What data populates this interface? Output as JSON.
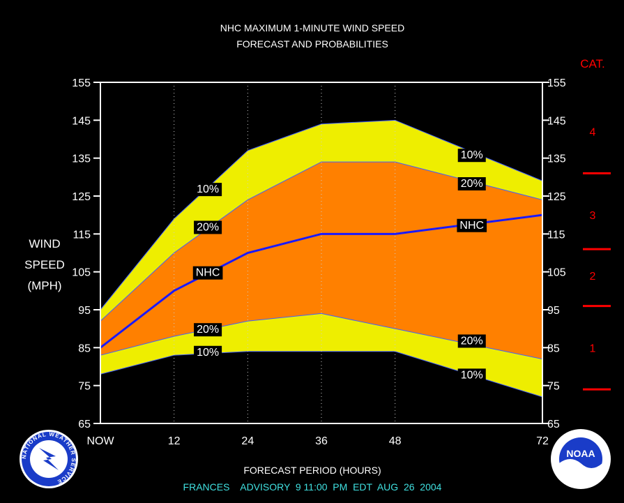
{
  "title_line1": "NHC MAXIMUM 1-MINUTE WIND SPEED",
  "title_line2": "FORECAST AND PROBABILITIES",
  "ylabel_lines": [
    "WIND",
    "SPEED",
    "(MPH)"
  ],
  "xlabel": "FORECAST PERIOD (HOURS)",
  "advisory": "FRANCES    ADVISORY  9 11:00  PM  EDT  AUG  26  2004",
  "category_header": "CAT.",
  "logos": {
    "left": "NATIONAL WEATHER SERVICE",
    "right": "NOAA"
  },
  "colors": {
    "background": "#000000",
    "band_10": "#eeee00",
    "band_20": "#ff8000",
    "nhc_line": "#1a1aff",
    "text": "#ffffff",
    "category": "#ff0000",
    "advisory": "#40e0e0",
    "grid": "#cccccc"
  },
  "chart_data": {
    "type": "area",
    "x": [
      0,
      12,
      24,
      36,
      48,
      72
    ],
    "x_tick_labels": [
      "NOW",
      "12",
      "24",
      "36",
      "48",
      "72"
    ],
    "xlim": [
      0,
      72
    ],
    "ylim": [
      65,
      155
    ],
    "y_ticks": [
      65,
      75,
      85,
      95,
      105,
      115,
      125,
      135,
      145,
      155
    ],
    "grid_x": [
      12,
      24,
      36,
      48
    ],
    "series": [
      {
        "key": "upper10",
        "values": [
          95,
          119,
          137,
          144,
          145,
          129
        ]
      },
      {
        "key": "upper20",
        "values": [
          92,
          110,
          124,
          134,
          134,
          124
        ]
      },
      {
        "name": "NHC",
        "values": [
          85,
          100,
          110,
          115,
          115,
          120
        ]
      },
      {
        "key": "lower20",
        "values": [
          83,
          88,
          92,
          94,
          90,
          82
        ]
      },
      {
        "key": "lower10",
        "values": [
          78,
          83,
          84,
          84,
          84,
          72
        ]
      }
    ],
    "annotations": [
      {
        "text": "10%",
        "x": 17.5,
        "y": 127
      },
      {
        "text": "20%",
        "x": 17.5,
        "y": 117
      },
      {
        "text": "NHC",
        "x": 17.5,
        "y": 105
      },
      {
        "text": "20%",
        "x": 17.5,
        "y": 90
      },
      {
        "text": "10%",
        "x": 17.5,
        "y": 84
      },
      {
        "text": "10%",
        "x": 60.5,
        "y": 136
      },
      {
        "text": "20%",
        "x": 60.5,
        "y": 128.5
      },
      {
        "text": "NHC",
        "x": 60.5,
        "y": 117.5
      },
      {
        "text": "20%",
        "x": 60.5,
        "y": 87
      },
      {
        "text": "10%",
        "x": 60.5,
        "y": 78
      }
    ],
    "categories": [
      {
        "label": "4",
        "y": 142
      },
      {
        "label": "3",
        "y": 120
      },
      {
        "label": "2",
        "y": 104
      },
      {
        "label": "1",
        "y": 85
      }
    ],
    "category_bounds": [
      74,
      96,
      111,
      131
    ]
  }
}
